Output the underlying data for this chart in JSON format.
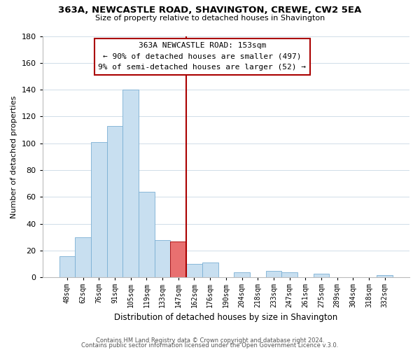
{
  "title": "363A, NEWCASTLE ROAD, SHAVINGTON, CREWE, CW2 5EA",
  "subtitle": "Size of property relative to detached houses in Shavington",
  "xlabel": "Distribution of detached houses by size in Shavington",
  "ylabel": "Number of detached properties",
  "bin_labels": [
    "48sqm",
    "62sqm",
    "76sqm",
    "91sqm",
    "105sqm",
    "119sqm",
    "133sqm",
    "147sqm",
    "162sqm",
    "176sqm",
    "190sqm",
    "204sqm",
    "218sqm",
    "233sqm",
    "247sqm",
    "261sqm",
    "275sqm",
    "289sqm",
    "304sqm",
    "318sqm",
    "332sqm"
  ],
  "bar_heights": [
    16,
    30,
    101,
    113,
    140,
    64,
    28,
    27,
    10,
    11,
    0,
    4,
    0,
    5,
    4,
    0,
    3,
    0,
    0,
    0,
    2
  ],
  "bar_color_normal": "#c8dff0",
  "bar_color_highlight": "#e87070",
  "bar_edge_color": "#7aafd4",
  "highlight_index": 7,
  "vline_x": 7.5,
  "vline_color": "#aa0000",
  "ylim": [
    0,
    180
  ],
  "yticks": [
    0,
    20,
    40,
    60,
    80,
    100,
    120,
    140,
    160,
    180
  ],
  "annotation_title": "363A NEWCASTLE ROAD: 153sqm",
  "annotation_line1": "← 90% of detached houses are smaller (497)",
  "annotation_line2": "9% of semi-detached houses are larger (52) →",
  "annotation_box_facecolor": "#ffffff",
  "annotation_box_edgecolor": "#aa0000",
  "footer1": "Contains HM Land Registry data © Crown copyright and database right 2024.",
  "footer2": "Contains public sector information licensed under the Open Government Licence v.3.0.",
  "bg_color": "#ffffff",
  "grid_color": "#d0dde8"
}
